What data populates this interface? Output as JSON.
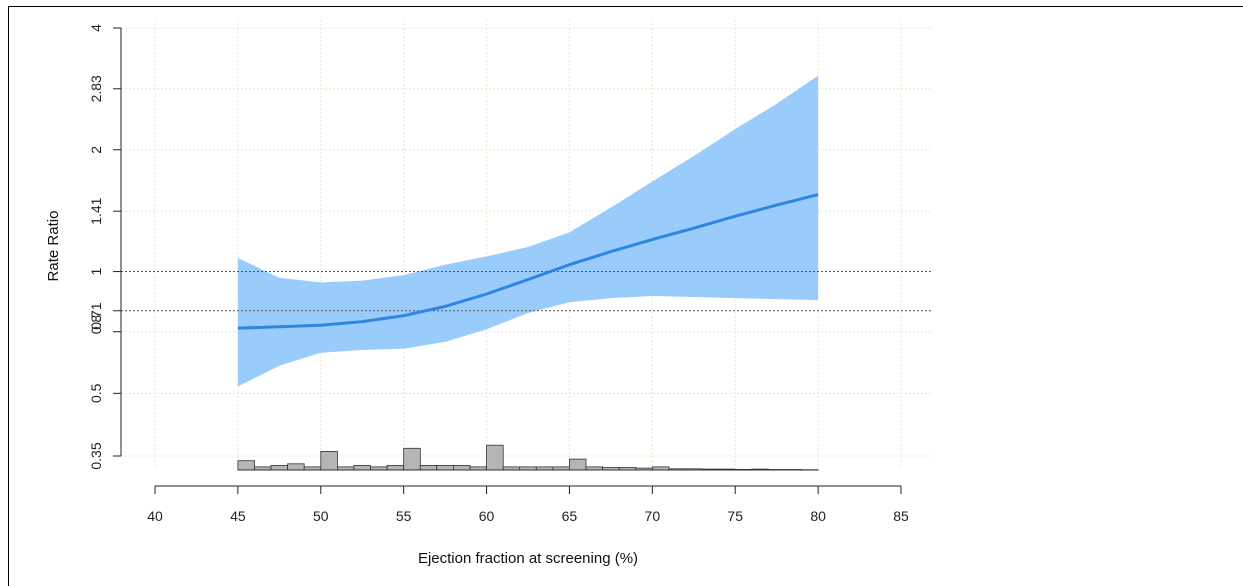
{
  "caption_fragment": "",
  "chart_data": {
    "type": "line",
    "xlabel": "Ejection fraction at screening (%)",
    "ylabel": "Rate Ratio",
    "xlim": [
      40,
      85
    ],
    "x_ticks": [
      40,
      45,
      50,
      55,
      60,
      65,
      70,
      75,
      80,
      85
    ],
    "y_scale": "log",
    "y_ticks": [
      {
        "value": 0.35,
        "label": "0.35"
      },
      {
        "value": 0.5,
        "label": "0.5"
      },
      {
        "value": 0.71,
        "label": "0.71"
      },
      {
        "value": 0.8,
        "label": "0.8"
      },
      {
        "value": 1,
        "label": "1"
      },
      {
        "value": 1.41,
        "label": "1.41"
      },
      {
        "value": 2,
        "label": "2"
      },
      {
        "value": 2.83,
        "label": "2.83"
      },
      {
        "value": 4,
        "label": "4"
      }
    ],
    "grid": true,
    "reference_lines": [
      1,
      0.8
    ],
    "series": [
      {
        "x": [
          45,
          47.5,
          50,
          52.5,
          55,
          57.5,
          60,
          62.5,
          65,
          67.5,
          70,
          72.5,
          75,
          77.5,
          80
        ],
        "y": [
          0.725,
          0.73,
          0.737,
          0.752,
          0.778,
          0.82,
          0.88,
          0.955,
          1.04,
          1.12,
          1.2,
          1.28,
          1.37,
          1.46,
          1.55
        ],
        "lower": [
          0.52,
          0.585,
          0.63,
          0.64,
          0.645,
          0.67,
          0.72,
          0.79,
          0.84,
          0.86,
          0.87,
          0.865,
          0.86,
          0.855,
          0.85
        ],
        "upper": [
          1.08,
          0.965,
          0.94,
          0.95,
          0.98,
          1.04,
          1.09,
          1.15,
          1.25,
          1.44,
          1.67,
          1.93,
          2.25,
          2.6,
          3.05
        ]
      }
    ],
    "histogram": {
      "bin_start": 45,
      "bin_width": 1,
      "counts": [
        3,
        1,
        1.5,
        2,
        1,
        6,
        1,
        1.5,
        1,
        1.5,
        7,
        1.5,
        1.5,
        1.5,
        1,
        8,
        1,
        1,
        1,
        1,
        3.5,
        1,
        0.8,
        0.8,
        0.6,
        1,
        0.4,
        0.4,
        0.3,
        0.3,
        0.2,
        0.3,
        0.15,
        0.15,
        0.1
      ]
    }
  }
}
